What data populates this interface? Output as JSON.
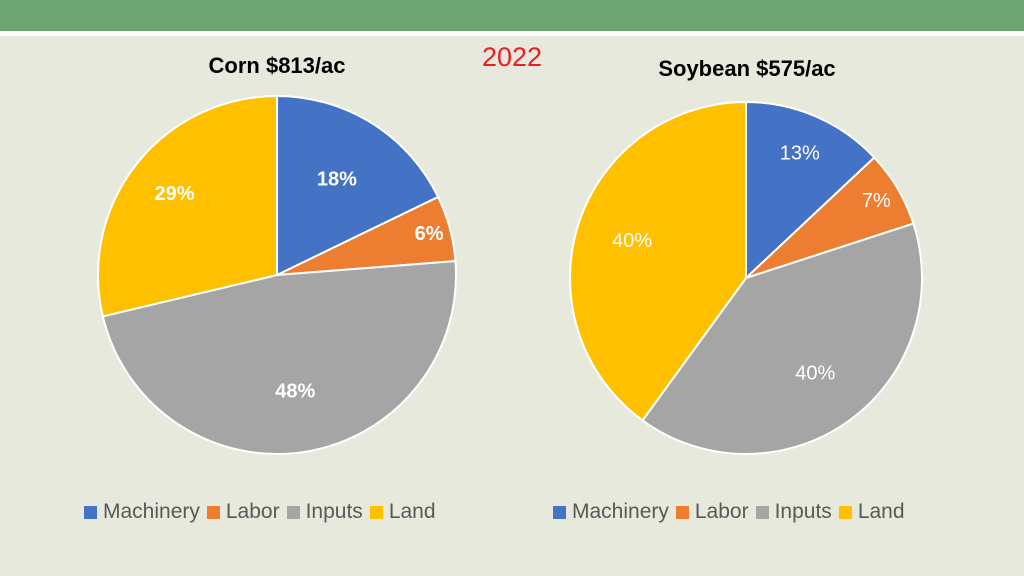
{
  "slide": {
    "year": "2022",
    "colors": {
      "header": "#6fa474",
      "background": "#e8e9dd",
      "year_text": "#ee1c25"
    }
  },
  "chart_data": [
    {
      "type": "pie",
      "title": "Corn $813/ac",
      "categories": [
        "Machinery",
        "Labor",
        "Inputs",
        "Land"
      ],
      "values": [
        18,
        6,
        48,
        29
      ],
      "labels": [
        "18%",
        "6%",
        "48%",
        "29%"
      ],
      "colors": [
        "#4472c4",
        "#ed7d31",
        "#a5a5a5",
        "#ffc000"
      ],
      "label_colors": [
        "#ffffff",
        "#ffffff",
        "#ffffff",
        "#ffffff"
      ],
      "label_bold": true,
      "legend": "bottom"
    },
    {
      "type": "pie",
      "title": "Soybean $575/ac",
      "categories": [
        "Machinery",
        "Labor",
        "Inputs",
        "Land"
      ],
      "values": [
        13,
        7,
        40,
        40
      ],
      "labels": [
        "13%",
        "7%",
        "40%",
        "40%"
      ],
      "colors": [
        "#4472c4",
        "#ed7d31",
        "#a5a5a5",
        "#ffc000"
      ],
      "label_colors": [
        "#ffffff",
        "#ffffff",
        "#ffffff",
        "#ffffff"
      ],
      "label_bold": false,
      "legend": "bottom"
    }
  ]
}
